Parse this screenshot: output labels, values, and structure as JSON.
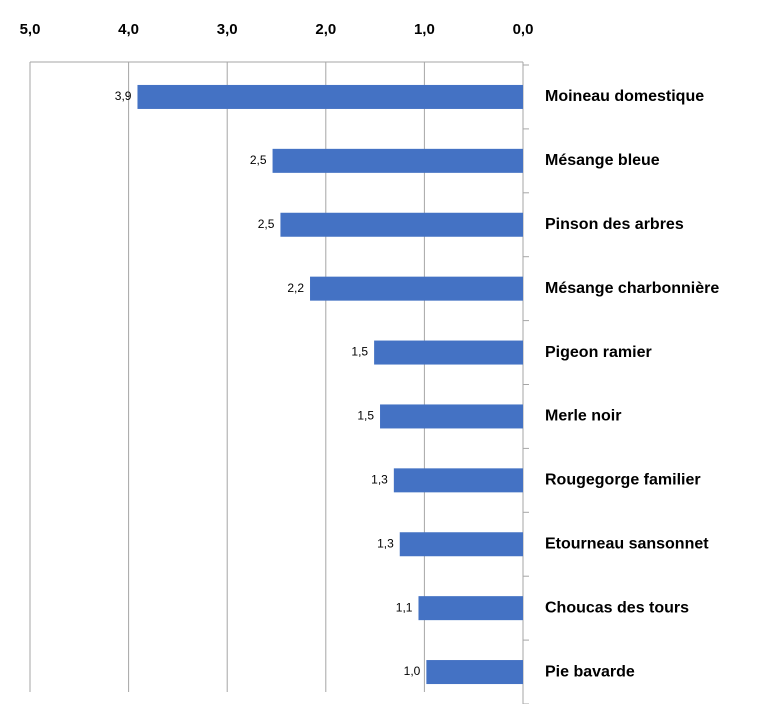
{
  "chart_data": {
    "type": "bar",
    "orientation": "horizontal",
    "reverse_x": true,
    "grid": true,
    "color": "#4472c4",
    "categories": [
      "Moineau domestique",
      "Mésange bleue",
      "Pinson des arbres",
      "Mésange charbonnière",
      "Pigeon ramier",
      "Merle noir",
      "Rougegorge familier",
      "Etourneau sansonnet",
      "Choucas des tours",
      "Pie bavarde"
    ],
    "values": [
      3.91,
      2.54,
      2.46,
      2.16,
      1.51,
      1.45,
      1.31,
      1.25,
      1.06,
      0.98
    ],
    "value_labels": [
      "3,9",
      "2,5",
      "2,5",
      "2,2",
      "1,5",
      "1,5",
      "1,3",
      "1,3",
      "1,1",
      "1,0"
    ],
    "xlim": [
      0,
      5
    ],
    "xticks": [
      {
        "value": 0,
        "label": "0,0"
      },
      {
        "value": 1,
        "label": "1,0"
      },
      {
        "value": 2,
        "label": "2,0"
      },
      {
        "value": 3,
        "label": "3,0"
      },
      {
        "value": 4,
        "label": "4,0"
      },
      {
        "value": 5,
        "label": "5,0"
      }
    ]
  }
}
